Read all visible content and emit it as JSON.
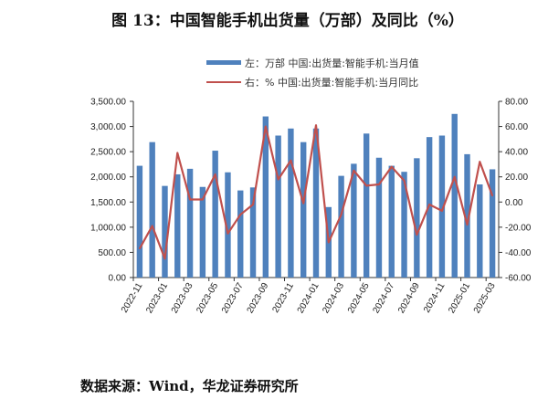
{
  "title": "图 13：中国智能手机出货量（万部）及同比（%）",
  "source": "数据来源：Wind，华龙证券研究所",
  "chart_data": {
    "type": "bar+line",
    "title": "图 13：中国智能手机出货量（万部）及同比（%）",
    "categories": [
      "2022-11",
      "2022-12",
      "2023-01",
      "2023-02",
      "2023-03",
      "2023-04",
      "2023-05",
      "2023-06",
      "2023-07",
      "2023-08",
      "2023-09",
      "2023-10",
      "2023-11",
      "2023-12",
      "2024-01",
      "2024-02",
      "2024-03",
      "2024-04",
      "2024-05",
      "2024-06",
      "2024-07",
      "2024-08",
      "2024-09",
      "2024-10",
      "2024-11",
      "2024-12",
      "2025-01",
      "2025-02",
      "2025-03"
    ],
    "x_tick_labels": [
      "2022-11",
      "2023-01",
      "2023-03",
      "2023-05",
      "2023-07",
      "2023-09",
      "2023-11",
      "2024-01",
      "2024-03",
      "2024-05",
      "2024-07",
      "2024-09",
      "2024-11",
      "2025-01",
      "2025-03"
    ],
    "series": [
      {
        "name": "左：万部 中国:出货量:智能手机:当月值",
        "type": "bar",
        "axis": "left",
        "color": "#4f81bd",
        "values": [
          2220,
          2690,
          1820,
          2050,
          2160,
          1800,
          2520,
          2090,
          1730,
          1790,
          3200,
          2820,
          2960,
          2690,
          2960,
          1400,
          2020,
          2260,
          2860,
          2380,
          2220,
          2100,
          2370,
          2790,
          2820,
          3250,
          2450,
          1850,
          2150
        ]
      },
      {
        "name": "右：% 中国:出货量:智能手机:当月同比",
        "type": "line",
        "axis": "right",
        "color": "#c0504d",
        "values": [
          -37,
          -19,
          -45,
          39,
          2,
          2,
          22,
          -25,
          -10,
          -2,
          60,
          18,
          33,
          -1,
          61,
          -32,
          -10,
          25,
          13,
          14,
          28,
          17,
          -26,
          -2,
          -7,
          20,
          -18,
          32,
          5
        ]
      }
    ],
    "left_axis": {
      "ylim": [
        0,
        3500
      ],
      "ticks": [
        "0.00",
        "500.00",
        "1,000.00",
        "1,500.00",
        "2,000.00",
        "2,500.00",
        "3,000.00",
        "3,500.00"
      ]
    },
    "right_axis": {
      "ylim": [
        -60,
        80
      ],
      "ticks": [
        "-60.00",
        "-40.00",
        "-20.00",
        "0.00",
        "20.00",
        "40.00",
        "60.00",
        "80.00"
      ]
    },
    "legend": "top-center",
    "grid": false
  }
}
